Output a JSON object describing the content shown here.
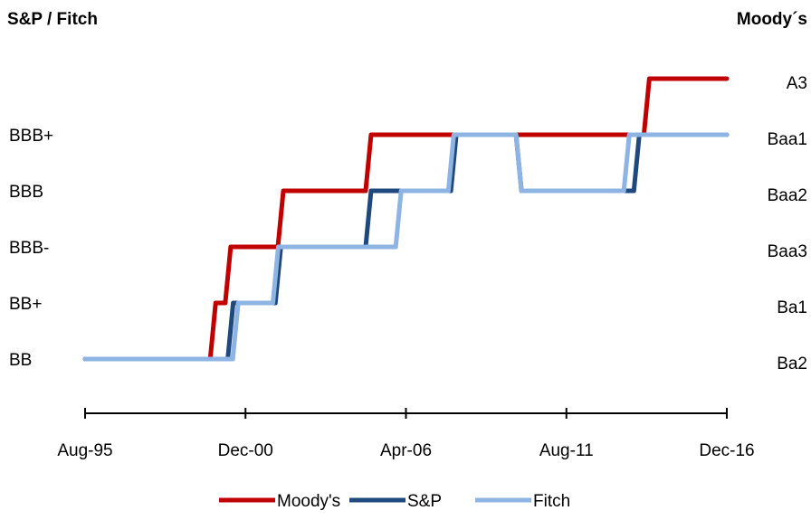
{
  "chart_data": {
    "type": "line",
    "left_axis_title": "S&P / Fitch",
    "right_axis_title": "Moody´s",
    "left_tick_labels": [
      "BB",
      "BB+",
      "BBB-",
      "BBB",
      "BBB+"
    ],
    "right_tick_labels": [
      "Ba2",
      "Ba1",
      "Baa3",
      "Baa2",
      "Baa1",
      "A3"
    ],
    "x_tick_labels": [
      "Aug-95",
      "Dec-00",
      "Apr-06",
      "Aug-11",
      "Dec-16"
    ],
    "x_tick_dates": [
      "1995-08",
      "2000-12",
      "2006-04",
      "2011-08",
      "2016-12"
    ],
    "xlim": [
      "1995-08",
      "2016-12"
    ],
    "grid": false,
    "legend_position": "bottom",
    "series": [
      {
        "name": "Moody's",
        "color": "#c00000",
        "steps": [
          {
            "date": "1995-08",
            "rating": "Ba2"
          },
          {
            "date": "1999-11",
            "rating": "Ba1"
          },
          {
            "date": "2000-05",
            "rating": "Baa3"
          },
          {
            "date": "2002-02",
            "rating": "Baa2"
          },
          {
            "date": "2005-01",
            "rating": "Baa1"
          },
          {
            "date": "2014-04",
            "rating": "A3"
          },
          {
            "date": "2016-12",
            "rating": "A3"
          }
        ]
      },
      {
        "name": "S&P",
        "color": "#1f497d",
        "steps": [
          {
            "date": "1995-08",
            "rating": "BB"
          },
          {
            "date": "2000-06",
            "rating": "BB+"
          },
          {
            "date": "2002-01",
            "rating": "BBB-"
          },
          {
            "date": "2005-01",
            "rating": "BBB"
          },
          {
            "date": "2007-11",
            "rating": "BBB+"
          },
          {
            "date": "2010-01",
            "rating": "BBB"
          },
          {
            "date": "2013-12",
            "rating": "BBB+"
          },
          {
            "date": "2016-12",
            "rating": "BBB+"
          }
        ]
      },
      {
        "name": "Fitch",
        "color": "#8db4e2",
        "steps": [
          {
            "date": "1995-08",
            "rating": "BB"
          },
          {
            "date": "2000-08",
            "rating": "BB+"
          },
          {
            "date": "2001-12",
            "rating": "BBB-"
          },
          {
            "date": "2006-01",
            "rating": "BBB"
          },
          {
            "date": "2007-10",
            "rating": "BBB+"
          },
          {
            "date": "2010-01",
            "rating": "BBB"
          },
          {
            "date": "2013-08",
            "rating": "BBB+"
          },
          {
            "date": "2016-12",
            "rating": "BBB+"
          }
        ]
      }
    ]
  }
}
